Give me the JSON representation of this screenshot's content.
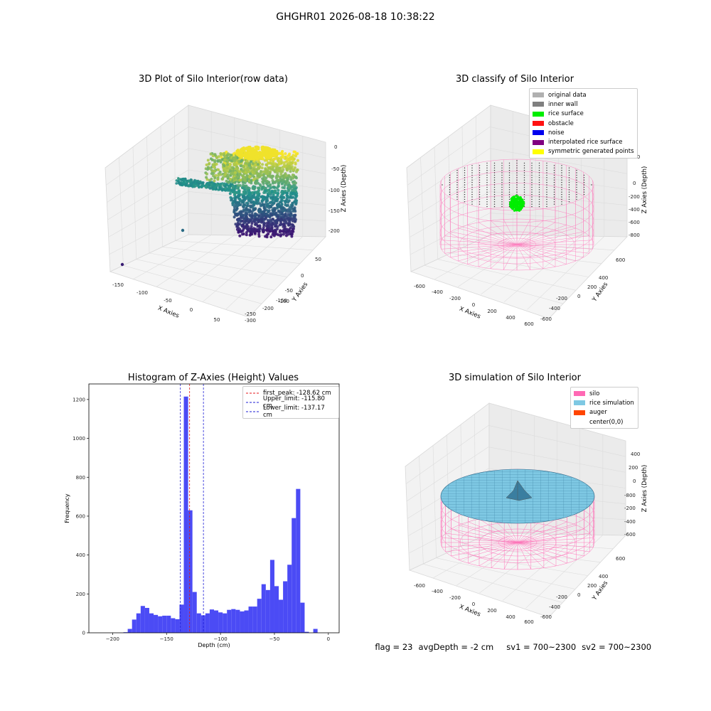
{
  "suptitle": "GHGHR01 2026-08-18 10:38:22",
  "footer": {
    "flag": "flag = 23",
    "avg_depth": "avgDepth = -2 cm",
    "sv1": "sv1 = 700~2300",
    "sv2": "sv2 = 700~2300"
  },
  "colors": {
    "hist_bar": "#4b4bf5",
    "first_peak": "#e41a1c",
    "limit_lines": "#1f1fd6",
    "silo": "#ff69b4",
    "rice_surface": "#00ee00",
    "rice_simulation": "#7ec8e3",
    "viridis_low": "#3b0f70",
    "viridis_high": "#fde725"
  },
  "chart_data": [
    {
      "type": "scatter",
      "projection": "3d",
      "title": "3D Plot of Silo Interior(row data)",
      "xlabel": "X Axies",
      "ylabel": "Y Axies",
      "zlabel": "Z Axies (Depth)",
      "xticks": [
        "-150",
        "-100",
        "-50",
        "0",
        "50"
      ],
      "yticks": [
        "50",
        "0",
        "-50",
        "-100",
        "-150",
        "-200",
        "-250",
        "-300"
      ],
      "zticks": [
        "0",
        "-50",
        "-100",
        "-150",
        "-200"
      ],
      "colormap": "viridis",
      "zlim": [
        -210,
        0
      ]
    },
    {
      "type": "scatter",
      "projection": "3d",
      "title": "3D classify of Silo Interior",
      "xlabel": "X Axies",
      "ylabel": "Y Axies",
      "zlabel": "Z Axies (Depth)",
      "xticks": [
        "-600",
        "-400",
        "-200",
        "0",
        "200",
        "400",
        "600"
      ],
      "yticks": [
        "600",
        "400",
        "200",
        "0",
        "-200",
        "-400",
        "-600"
      ],
      "zticks": [
        "200",
        "0",
        "-200",
        "-400",
        "-600",
        "-800"
      ],
      "legend": {
        "placement": "top-right",
        "entries": [
          {
            "label": "original data",
            "color": "#b0b0b0"
          },
          {
            "label": "inner wall",
            "color": "#808080"
          },
          {
            "label": "rice surface",
            "color": "#00ee00"
          },
          {
            "label": "obstacle",
            "color": "#ff1111"
          },
          {
            "label": "noise",
            "color": "#0000ee"
          },
          {
            "label": "interpolated rice surface",
            "color": "#800080"
          },
          {
            "label": "symmetric generated points",
            "color": "#ffff00"
          }
        ]
      }
    },
    {
      "type": "bar",
      "title": "Histogram of Z-Axies (Height) Values",
      "xlabel": "Depth (cm)",
      "ylabel": "Frequency",
      "xlim": [
        -222,
        10
      ],
      "ylim": [
        0,
        1280
      ],
      "xticks": [
        -200,
        -150,
        -100,
        -50,
        0
      ],
      "yticks": [
        0,
        200,
        400,
        600,
        800,
        1000,
        1200
      ],
      "bin_width": 4,
      "bins": [
        {
          "x": -188,
          "count": 3
        },
        {
          "x": -184,
          "count": 20
        },
        {
          "x": -180,
          "count": 68
        },
        {
          "x": -176,
          "count": 100
        },
        {
          "x": -172,
          "count": 138
        },
        {
          "x": -168,
          "count": 128
        },
        {
          "x": -164,
          "count": 100
        },
        {
          "x": -160,
          "count": 92
        },
        {
          "x": -156,
          "count": 85
        },
        {
          "x": -152,
          "count": 88
        },
        {
          "x": -148,
          "count": 88
        },
        {
          "x": -144,
          "count": 75
        },
        {
          "x": -140,
          "count": 70
        },
        {
          "x": -136,
          "count": 145
        },
        {
          "x": -132,
          "count": 1215
        },
        {
          "x": -128,
          "count": 630
        },
        {
          "x": -124,
          "count": 210
        },
        {
          "x": -120,
          "count": 100
        },
        {
          "x": -116,
          "count": 90
        },
        {
          "x": -112,
          "count": 100
        },
        {
          "x": -108,
          "count": 120
        },
        {
          "x": -104,
          "count": 115
        },
        {
          "x": -100,
          "count": 105
        },
        {
          "x": -96,
          "count": 100
        },
        {
          "x": -92,
          "count": 118
        },
        {
          "x": -88,
          "count": 122
        },
        {
          "x": -84,
          "count": 118
        },
        {
          "x": -80,
          "count": 110
        },
        {
          "x": -76,
          "count": 115
        },
        {
          "x": -72,
          "count": 135
        },
        {
          "x": -68,
          "count": 135
        },
        {
          "x": -64,
          "count": 175
        },
        {
          "x": -60,
          "count": 250
        },
        {
          "x": -56,
          "count": 220
        },
        {
          "x": -52,
          "count": 375
        },
        {
          "x": -48,
          "count": 240
        },
        {
          "x": -44,
          "count": 170
        },
        {
          "x": -40,
          "count": 265
        },
        {
          "x": -36,
          "count": 350
        },
        {
          "x": -32,
          "count": 590
        },
        {
          "x": -28,
          "count": 740
        },
        {
          "x": -24,
          "count": 155
        },
        {
          "x": -20,
          "count": 5
        },
        {
          "x": -12,
          "count": 20
        }
      ],
      "vlines": [
        {
          "name": "first_peak: -128.62 cm",
          "x": -128.62,
          "color": "#e41a1c"
        },
        {
          "name": "Upper_limit: -115.80 cm",
          "x": -115.8,
          "color": "#1f1fd6"
        },
        {
          "name": "Lower_limit: -137.17 cm",
          "x": -137.17,
          "color": "#1f1fd6"
        }
      ],
      "legend_placement": "top-right"
    },
    {
      "type": "surface",
      "projection": "3d",
      "title": "3D simulation of Silo Interior",
      "xlabel": "X Axies",
      "ylabel": "Y Axies",
      "zlabel": "Z Axies (Depth)",
      "xticks": [
        "-600",
        "-400",
        "-200",
        "0",
        "200",
        "400",
        "600"
      ],
      "yticks": [
        "600",
        "400",
        "200",
        "0",
        "-200",
        "-400",
        "-600"
      ],
      "zticks": [
        "400",
        "200",
        "0",
        "-200",
        "-400",
        "-600",
        "-800"
      ],
      "legend": {
        "placement": "top-right",
        "entries": [
          {
            "label": "silo",
            "color": "#ff69b4"
          },
          {
            "label": "rice simulation",
            "color": "#7ec8e3"
          },
          {
            "label": "auger",
            "color": "#ff4500"
          },
          {
            "label": "center(0,0)",
            "color": ""
          }
        ]
      }
    }
  ]
}
